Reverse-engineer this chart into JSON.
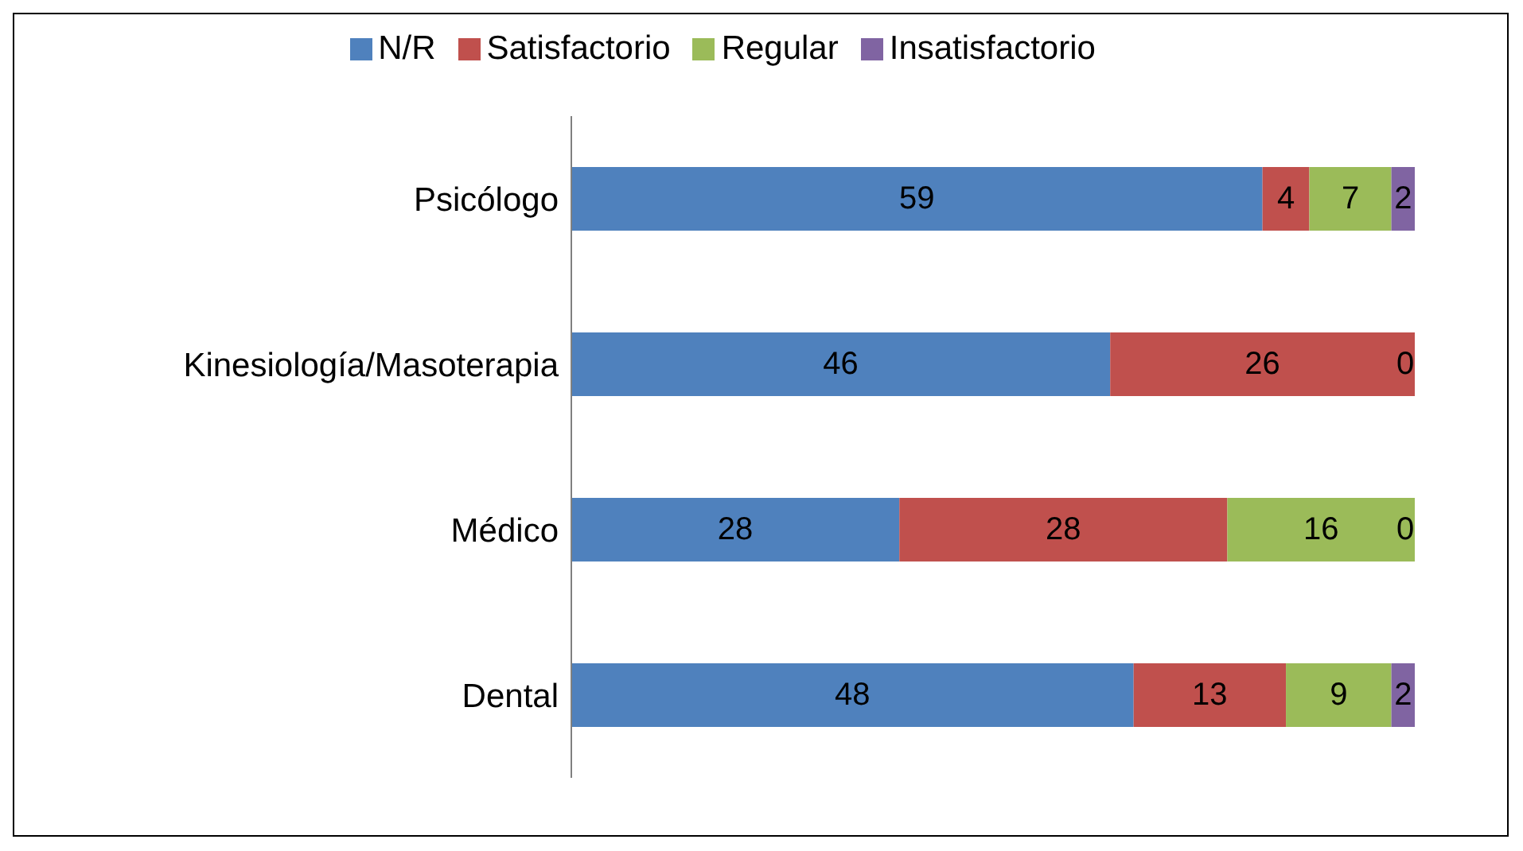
{
  "chart_data": {
    "type": "bar",
    "orientation": "horizontal",
    "stacked": true,
    "legend": "top",
    "categories": [
      "Psicólogo",
      "Kinesiología/Masoterapia",
      "Médico",
      "Dental"
    ],
    "series": [
      {
        "name": "N/R",
        "color": "#4f81bd",
        "values": [
          59,
          46,
          28,
          48
        ],
        "value_labels": [
          "59",
          "46",
          "28",
          "48"
        ]
      },
      {
        "name": "Satisfactorio",
        "color": "#c0504d",
        "values": [
          4,
          26,
          28,
          13
        ],
        "value_labels": [
          "4",
          "26",
          "28",
          "13"
        ]
      },
      {
        "name": "Regular",
        "color": "#9bbb59",
        "values": [
          7,
          0,
          16,
          9
        ],
        "value_labels": [
          "7",
          null,
          "16",
          "9"
        ]
      },
      {
        "name": "Insatisfactorio",
        "color": "#8064a2",
        "values": [
          2,
          0,
          0,
          2
        ],
        "value_labels": [
          "2",
          "0",
          "0",
          "2"
        ]
      }
    ]
  }
}
